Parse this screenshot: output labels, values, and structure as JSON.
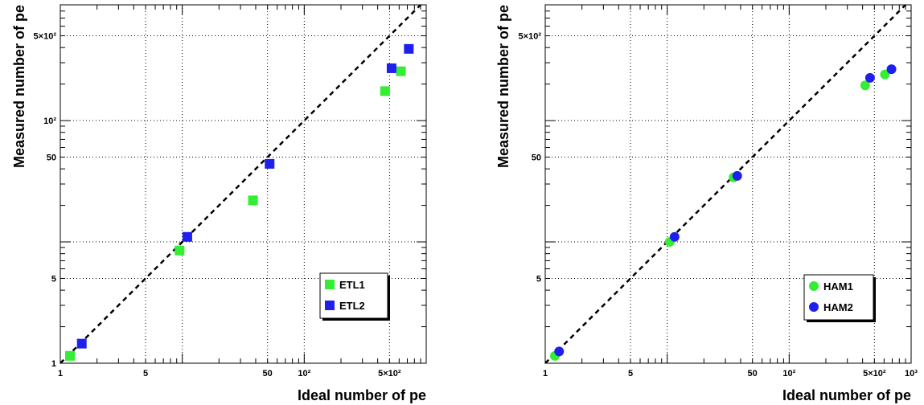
{
  "chart_data": [
    {
      "type": "scatter",
      "xlabel": "Ideal number of pe",
      "ylabel": "Measured number of pe",
      "xscale": "log",
      "yscale": "log",
      "xlim": [
        1,
        1000
      ],
      "ylim": [
        1,
        900
      ],
      "grid": true,
      "legend_position": "bottom-right",
      "x_ticks": [
        "1",
        "5",
        "50",
        "10²",
        "5×10²"
      ],
      "y_ticks": [
        "1",
        "5",
        "50",
        "10²",
        "5×10²"
      ],
      "series": [
        {
          "name": "ETL1",
          "marker": "square",
          "color": "#33ee33",
          "x": [
            1.2,
            9.5,
            38,
            460,
            620
          ],
          "y": [
            1.15,
            8.5,
            22,
            175,
            255
          ]
        },
        {
          "name": "ETL2",
          "marker": "square",
          "color": "#2020ee",
          "x": [
            1.5,
            11,
            52,
            520,
            720
          ],
          "y": [
            1.45,
            11,
            44,
            270,
            390
          ]
        }
      ]
    },
    {
      "type": "scatter",
      "xlabel": "Ideal number of pe",
      "ylabel": "Measured number of pe",
      "xscale": "log",
      "yscale": "log",
      "xlim": [
        1,
        1000
      ],
      "ylim": [
        1,
        900
      ],
      "grid": true,
      "legend_position": "bottom-right",
      "x_ticks": [
        "1",
        "5",
        "50",
        "10²",
        "5×10²",
        "10³"
      ],
      "y_ticks": [
        "5",
        "50",
        "5×10²"
      ],
      "series": [
        {
          "name": "HAM1",
          "marker": "circle",
          "color": "#33ee33",
          "x": [
            1.2,
            10.5,
            35,
            420,
            610
          ],
          "y": [
            1.15,
            10,
            34,
            195,
            240
          ]
        },
        {
          "name": "HAM2",
          "marker": "circle",
          "color": "#2020ee",
          "x": [
            1.3,
            11.5,
            37.5,
            460,
            690
          ],
          "y": [
            1.25,
            11,
            35,
            225,
            265
          ]
        }
      ]
    }
  ]
}
